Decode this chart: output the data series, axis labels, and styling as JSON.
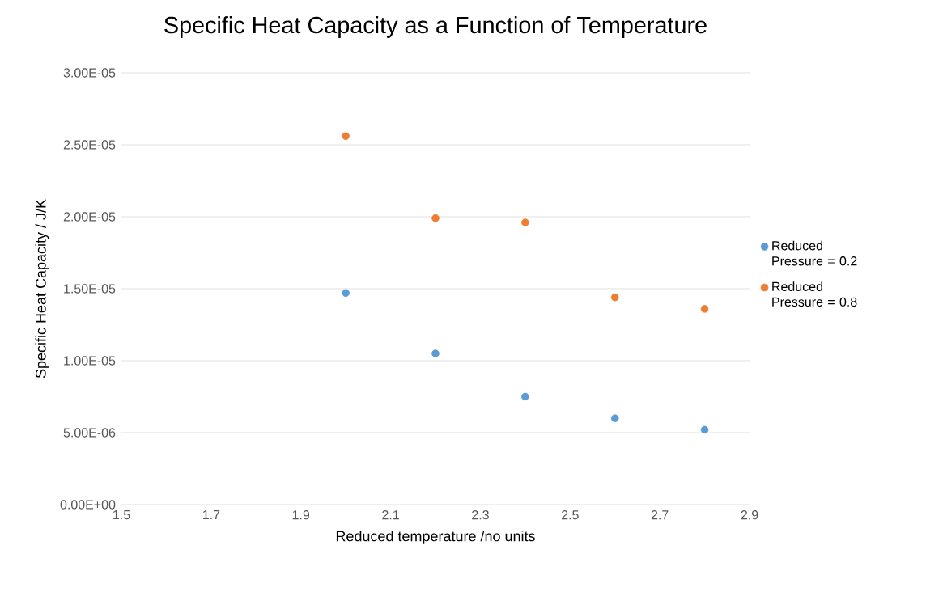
{
  "chart_data": {
    "type": "scatter",
    "title": "Specific Heat Capacity as a Function of Temperature",
    "xlabel": "Reduced temperature /no units",
    "ylabel": "Specific Heat Capacity / J/K",
    "x": [
      2.0,
      2.2,
      2.4,
      2.6,
      2.8
    ],
    "series": [
      {
        "name": "Reduced Pressure = 0.2",
        "color": "#5b9bd5",
        "values": [
          1.47e-05,
          1.05e-05,
          7.5e-06,
          6e-06,
          5.2e-06
        ]
      },
      {
        "name": "Reduced Pressure = 0.8",
        "color": "#ed7d31",
        "values": [
          2.56e-05,
          1.99e-05,
          1.96e-05,
          1.44e-05,
          1.36e-05
        ]
      }
    ],
    "xlim": [
      1.5,
      2.9
    ],
    "xticks": [
      1.5,
      1.7,
      1.9,
      2.1,
      2.3,
      2.5,
      2.7,
      2.9
    ],
    "ylim": [
      0,
      3e-05
    ],
    "yticks": [
      {
        "value": 0,
        "label": "0.00E+00"
      },
      {
        "value": 5e-06,
        "label": "5.00E-06"
      },
      {
        "value": 1e-05,
        "label": "1.00E-05"
      },
      {
        "value": 1.5e-05,
        "label": "1.50E-05"
      },
      {
        "value": 2e-05,
        "label": "2.00E-05"
      },
      {
        "value": 2.5e-05,
        "label": "2.50E-05"
      },
      {
        "value": 3e-05,
        "label": "3.00E-05"
      }
    ],
    "grid": "y",
    "legend": "right",
    "marker": "circle"
  }
}
